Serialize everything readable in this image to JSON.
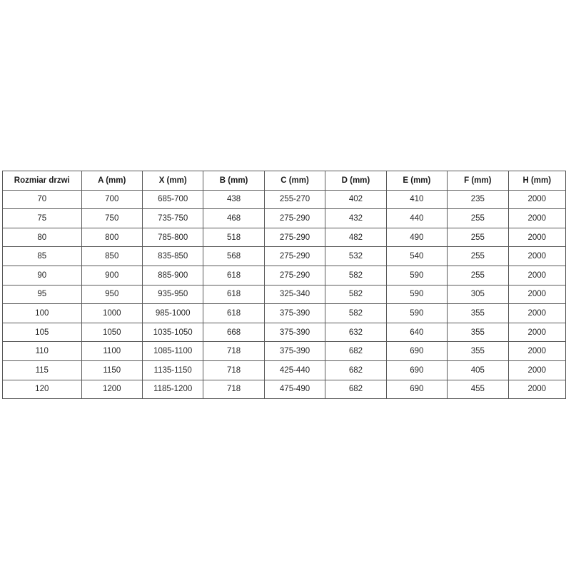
{
  "table": {
    "headers": [
      "Rozmiar drzwi",
      "A (mm)",
      "X (mm)",
      "B (mm)",
      "C (mm)",
      "D (mm)",
      "E (mm)",
      "F (mm)",
      "H (mm)"
    ],
    "rows": [
      [
        "70",
        "700",
        "685-700",
        "438",
        "255-270",
        "402",
        "410",
        "235",
        "2000"
      ],
      [
        "75",
        "750",
        "735-750",
        "468",
        "275-290",
        "432",
        "440",
        "255",
        "2000"
      ],
      [
        "80",
        "800",
        "785-800",
        "518",
        "275-290",
        "482",
        "490",
        "255",
        "2000"
      ],
      [
        "85",
        "850",
        "835-850",
        "568",
        "275-290",
        "532",
        "540",
        "255",
        "2000"
      ],
      [
        "90",
        "900",
        "885-900",
        "618",
        "275-290",
        "582",
        "590",
        "255",
        "2000"
      ],
      [
        "95",
        "950",
        "935-950",
        "618",
        "325-340",
        "582",
        "590",
        "305",
        "2000"
      ],
      [
        "100",
        "1000",
        "985-1000",
        "618",
        "375-390",
        "582",
        "590",
        "355",
        "2000"
      ],
      [
        "105",
        "1050",
        "1035-1050",
        "668",
        "375-390",
        "632",
        "640",
        "355",
        "2000"
      ],
      [
        "110",
        "1100",
        "1085-1100",
        "718",
        "375-390",
        "682",
        "690",
        "355",
        "2000"
      ],
      [
        "115",
        "1150",
        "1135-1150",
        "718",
        "425-440",
        "682",
        "690",
        "405",
        "2000"
      ],
      [
        "120",
        "1200",
        "1185-1200",
        "718",
        "475-490",
        "682",
        "690",
        "455",
        "2000"
      ]
    ]
  },
  "colors": {
    "border": "#595959",
    "text": "#262626",
    "background": "#ffffff"
  }
}
